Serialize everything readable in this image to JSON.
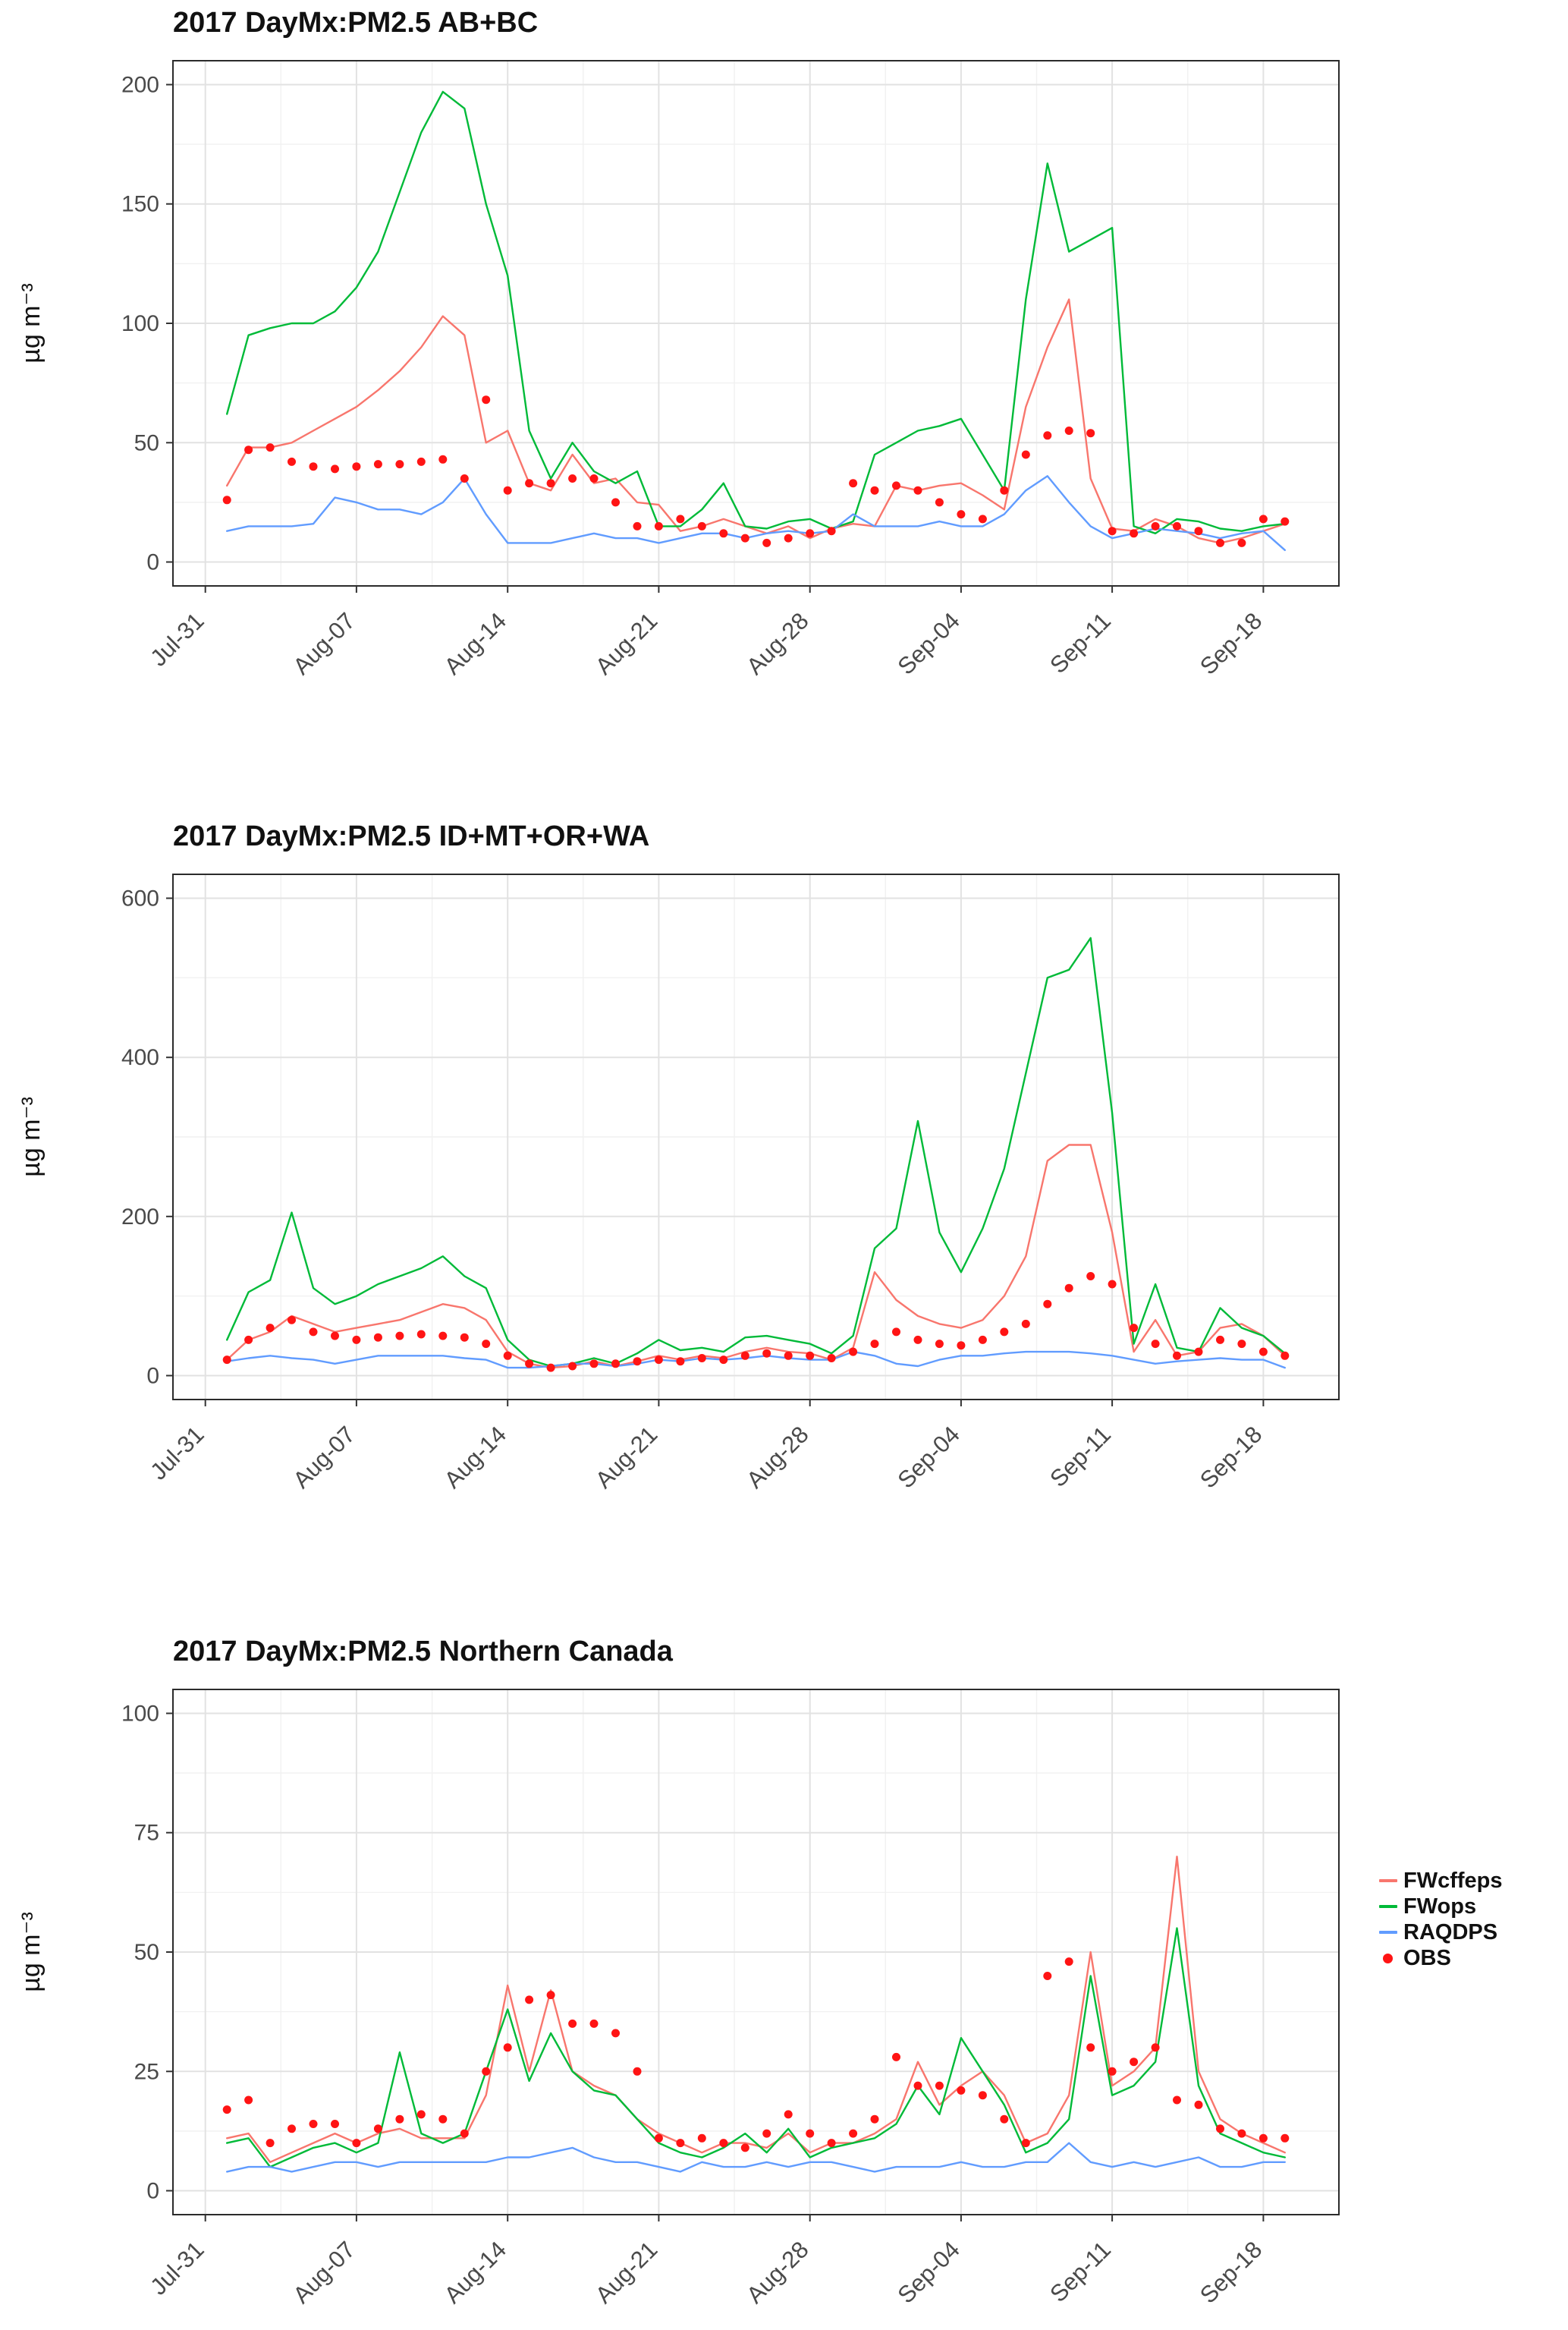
{
  "page_title": "2017 DayMx PM2.5 daily-maximum time series (3 panels)",
  "x_axis": {
    "tick_labels": [
      "Jul-31",
      "Aug-07",
      "Aug-14",
      "Aug-21",
      "Aug-28",
      "Sep-04",
      "Sep-11",
      "Sep-18"
    ],
    "tick_days_since_jul31": [
      0,
      7,
      14,
      21,
      28,
      35,
      42,
      49
    ],
    "data_days_since_jul31": [
      1,
      2,
      3,
      4,
      5,
      6,
      7,
      8,
      9,
      10,
      11,
      12,
      13,
      14,
      15,
      16,
      17,
      18,
      19,
      20,
      21,
      22,
      23,
      24,
      25,
      26,
      27,
      28,
      29,
      30,
      31,
      32,
      33,
      34,
      35,
      36,
      37,
      38,
      39,
      40,
      41,
      42,
      43,
      44,
      45,
      46,
      47,
      48,
      49,
      50
    ]
  },
  "legend": {
    "position": "right of third panel",
    "items": [
      {
        "label": "FWcffeps",
        "color": "#F8766D",
        "marker": "line"
      },
      {
        "label": "FWops",
        "color": "#00BA38",
        "marker": "line"
      },
      {
        "label": "RAQDPS",
        "color": "#619CFF",
        "marker": "line"
      },
      {
        "label": "OBS",
        "color": "#FF1414",
        "marker": "point"
      }
    ]
  },
  "chart_data": [
    {
      "type": "line",
      "title": "2017 DayMx:PM2.5 AB+BC",
      "xlabel": "",
      "ylabel": "µg m⁻³",
      "ylim": [
        0,
        200
      ],
      "yticks": [
        0,
        50,
        100,
        150,
        200
      ],
      "grid": true,
      "legend_position": "none",
      "series": [
        {
          "name": "FWcffeps",
          "color": "#F8766D",
          "style": "line",
          "values": [
            32,
            48,
            48,
            50,
            55,
            60,
            65,
            72,
            80,
            90,
            103,
            95,
            50,
            55,
            33,
            30,
            45,
            33,
            35,
            25,
            24,
            13,
            15,
            18,
            15,
            12,
            15,
            10,
            14,
            16,
            15,
            32,
            30,
            32,
            33,
            28,
            22,
            65,
            90,
            110,
            35,
            14,
            13,
            18,
            15,
            10,
            8,
            10,
            13,
            16
          ]
        },
        {
          "name": "FWops",
          "color": "#00BA38",
          "style": "line",
          "values": [
            62,
            95,
            98,
            100,
            100,
            105,
            115,
            130,
            155,
            180,
            197,
            190,
            150,
            120,
            55,
            35,
            50,
            38,
            33,
            38,
            15,
            15,
            22,
            33,
            15,
            14,
            17,
            18,
            14,
            17,
            45,
            50,
            55,
            57,
            60,
            45,
            30,
            110,
            167,
            130,
            135,
            140,
            15,
            12,
            18,
            17,
            14,
            13,
            15,
            16
          ]
        },
        {
          "name": "RAQDPS",
          "color": "#619CFF",
          "style": "line",
          "values": [
            13,
            15,
            15,
            15,
            16,
            27,
            25,
            22,
            22,
            20,
            25,
            35,
            20,
            8,
            8,
            8,
            10,
            12,
            10,
            10,
            8,
            10,
            12,
            12,
            10,
            12,
            13,
            12,
            13,
            20,
            15,
            15,
            15,
            17,
            15,
            15,
            20,
            30,
            36,
            25,
            15,
            10,
            12,
            14,
            13,
            12,
            10,
            12,
            13,
            5
          ]
        },
        {
          "name": "OBS",
          "color": "#FF1414",
          "style": "points",
          "values": [
            26,
            47,
            48,
            42,
            40,
            39,
            40,
            41,
            41,
            42,
            43,
            35,
            68,
            30,
            33,
            33,
            35,
            35,
            25,
            15,
            15,
            18,
            15,
            12,
            10,
            8,
            10,
            12,
            13,
            33,
            30,
            32,
            30,
            25,
            20,
            18,
            30,
            45,
            53,
            55,
            54,
            13,
            12,
            15,
            15,
            13,
            8,
            8,
            18,
            17
          ]
        }
      ]
    },
    {
      "type": "line",
      "title": "2017 DayMx:PM2.5 ID+MT+OR+WA",
      "xlabel": "",
      "ylabel": "µg m⁻³",
      "ylim": [
        0,
        600
      ],
      "yticks": [
        0,
        200,
        400,
        600
      ],
      "grid": true,
      "legend_position": "none",
      "series": [
        {
          "name": "FWcffeps",
          "color": "#F8766D",
          "style": "line",
          "values": [
            20,
            45,
            55,
            75,
            65,
            55,
            60,
            65,
            70,
            80,
            90,
            85,
            70,
            30,
            15,
            10,
            12,
            18,
            12,
            18,
            25,
            20,
            25,
            22,
            30,
            35,
            30,
            28,
            20,
            35,
            130,
            95,
            75,
            65,
            60,
            70,
            100,
            150,
            270,
            290,
            290,
            180,
            30,
            70,
            25,
            30,
            60,
            65,
            50,
            25
          ]
        },
        {
          "name": "FWops",
          "color": "#00BA38",
          "style": "line",
          "values": [
            45,
            105,
            120,
            205,
            110,
            90,
            100,
            115,
            125,
            135,
            150,
            125,
            110,
            45,
            20,
            12,
            15,
            22,
            15,
            28,
            45,
            32,
            35,
            30,
            48,
            50,
            45,
            40,
            28,
            50,
            160,
            185,
            320,
            180,
            130,
            185,
            260,
            380,
            500,
            510,
            550,
            330,
            40,
            115,
            35,
            30,
            85,
            60,
            50,
            28
          ]
        },
        {
          "name": "RAQDPS",
          "color": "#619CFF",
          "style": "line",
          "values": [
            18,
            22,
            25,
            22,
            20,
            15,
            20,
            25,
            25,
            25,
            25,
            22,
            20,
            10,
            10,
            12,
            15,
            15,
            12,
            15,
            20,
            18,
            22,
            20,
            22,
            25,
            22,
            20,
            20,
            30,
            25,
            15,
            12,
            20,
            25,
            25,
            28,
            30,
            30,
            30,
            28,
            25,
            20,
            15,
            18,
            20,
            22,
            20,
            20,
            10
          ]
        },
        {
          "name": "OBS",
          "color": "#FF1414",
          "style": "points",
          "values": [
            20,
            45,
            60,
            70,
            55,
            50,
            45,
            48,
            50,
            52,
            50,
            48,
            40,
            25,
            15,
            10,
            12,
            15,
            15,
            18,
            20,
            18,
            22,
            20,
            25,
            28,
            25,
            25,
            22,
            30,
            40,
            55,
            45,
            40,
            38,
            45,
            55,
            65,
            90,
            110,
            125,
            115,
            60,
            40,
            25,
            30,
            45,
            40,
            30,
            25
          ]
        }
      ]
    },
    {
      "type": "line",
      "title": "2017 DayMx:PM2.5 Northern Canada",
      "xlabel": "",
      "ylabel": "µg m⁻³",
      "ylim": [
        0,
        100
      ],
      "yticks": [
        0,
        25,
        50,
        75,
        100
      ],
      "grid": true,
      "legend_position": "right",
      "series": [
        {
          "name": "FWcffeps",
          "color": "#F8766D",
          "style": "line",
          "values": [
            11,
            12,
            6,
            8,
            10,
            12,
            10,
            12,
            13,
            11,
            11,
            11,
            20,
            43,
            25,
            42,
            25,
            22,
            20,
            15,
            12,
            10,
            8,
            10,
            10,
            9,
            12,
            8,
            10,
            10,
            12,
            15,
            27,
            18,
            22,
            25,
            20,
            10,
            12,
            20,
            50,
            22,
            25,
            30,
            70,
            25,
            15,
            12,
            10,
            8
          ]
        },
        {
          "name": "FWops",
          "color": "#00BA38",
          "style": "line",
          "values": [
            10,
            11,
            5,
            7,
            9,
            10,
            8,
            10,
            29,
            12,
            10,
            12,
            25,
            38,
            23,
            33,
            25,
            21,
            20,
            15,
            10,
            8,
            7,
            9,
            12,
            8,
            13,
            7,
            9,
            10,
            11,
            14,
            22,
            16,
            32,
            25,
            18,
            8,
            10,
            15,
            45,
            20,
            22,
            27,
            55,
            22,
            12,
            10,
            8,
            7
          ]
        },
        {
          "name": "RAQDPS",
          "color": "#619CFF",
          "style": "line",
          "values": [
            4,
            5,
            5,
            4,
            5,
            6,
            6,
            5,
            6,
            6,
            6,
            6,
            6,
            7,
            7,
            8,
            9,
            7,
            6,
            6,
            5,
            4,
            6,
            5,
            5,
            6,
            5,
            6,
            6,
            5,
            4,
            5,
            5,
            5,
            6,
            5,
            5,
            6,
            6,
            10,
            6,
            5,
            6,
            5,
            6,
            7,
            5,
            5,
            6,
            6
          ]
        },
        {
          "name": "OBS",
          "color": "#FF1414",
          "style": "points",
          "values": [
            17,
            19,
            10,
            13,
            14,
            14,
            10,
            13,
            15,
            16,
            15,
            12,
            25,
            30,
            40,
            41,
            35,
            35,
            33,
            25,
            11,
            10,
            11,
            10,
            9,
            12,
            16,
            12,
            10,
            12,
            15,
            28,
            22,
            22,
            21,
            20,
            15,
            10,
            45,
            48,
            30,
            25,
            27,
            30,
            19,
            18,
            13,
            12,
            11,
            11
          ]
        }
      ]
    }
  ]
}
